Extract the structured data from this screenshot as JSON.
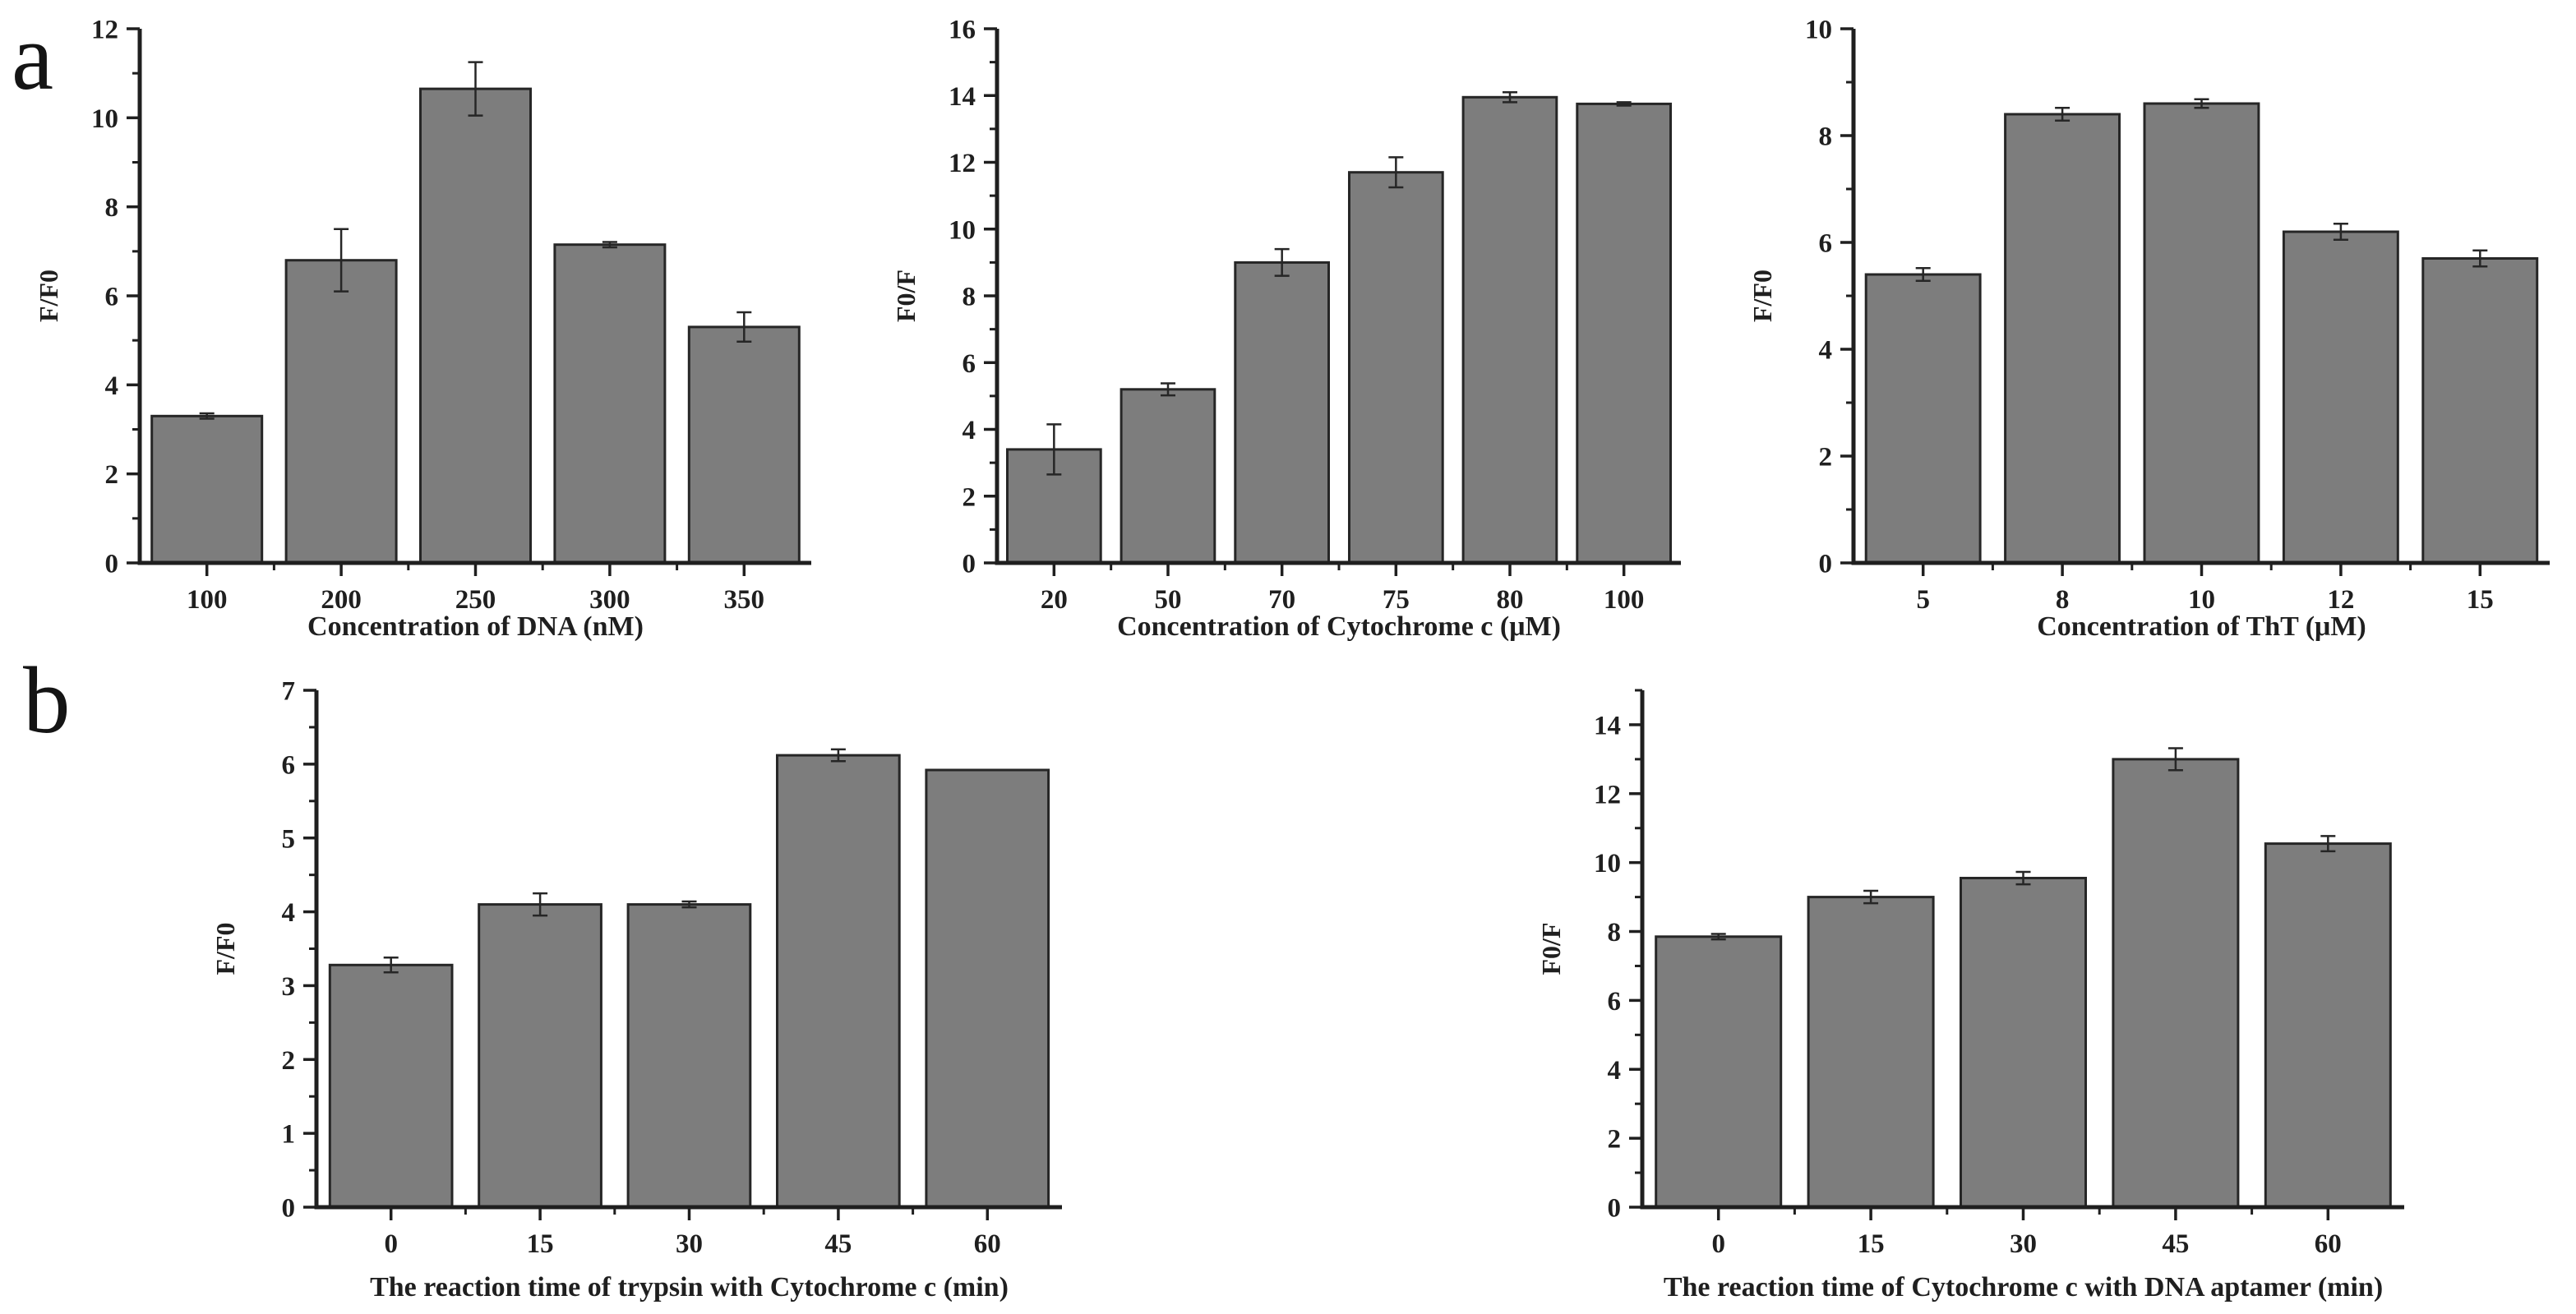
{
  "figure": {
    "description": "Five bar charts showing fluorescence ratio optimization results",
    "panels": [
      {
        "label": "a"
      },
      {
        "label": "b"
      }
    ]
  },
  "colors": {
    "background": "#ffffff",
    "bar_fill": "#7d7d7d",
    "bar_stroke": "#262626",
    "axis": "#1f1f1f",
    "text": "#1f1f1f"
  },
  "chart_data": [
    {
      "type": "bar",
      "panel": "a",
      "title": "",
      "xlabel": "Concentration of DNA (nM)",
      "ylabel": "F/F0",
      "categories": [
        "100",
        "200",
        "250",
        "300",
        "350"
      ],
      "values": [
        3.3,
        6.8,
        10.65,
        7.15,
        5.3
      ],
      "errors": [
        0.06,
        0.7,
        0.6,
        0.06,
        0.33
      ],
      "ylim": [
        0,
        12
      ],
      "ytick_step": 2,
      "yminor_step": 1,
      "grid": false,
      "legend": "none"
    },
    {
      "type": "bar",
      "panel": "a",
      "title": "",
      "xlabel": "Concentration of Cytochrome c (μM)",
      "ylabel": "F0/F",
      "categories": [
        "20",
        "50",
        "70",
        "75",
        "80",
        "100"
      ],
      "values": [
        3.4,
        5.2,
        9.0,
        11.7,
        13.95,
        13.75
      ],
      "errors": [
        0.75,
        0.18,
        0.4,
        0.45,
        0.15,
        0.05
      ],
      "ylim": [
        0,
        16
      ],
      "ytick_step": 2,
      "yminor_step": 1,
      "grid": false,
      "legend": "none"
    },
    {
      "type": "bar",
      "panel": "a",
      "title": "",
      "xlabel": "Concentration of ThT (μM)",
      "ylabel": "F/F0",
      "categories": [
        "5",
        "8",
        "10",
        "12",
        "15"
      ],
      "values": [
        5.4,
        8.4,
        8.6,
        6.2,
        5.7
      ],
      "errors": [
        0.12,
        0.12,
        0.08,
        0.15,
        0.15
      ],
      "ylim": [
        0,
        10
      ],
      "ytick_step": 2,
      "yminor_step": 1,
      "grid": false,
      "legend": "none"
    },
    {
      "type": "bar",
      "panel": "b",
      "title": "",
      "xlabel": "The reaction time of trypsin with Cytochrome c (min)",
      "ylabel": "F/F0",
      "categories": [
        "0",
        "15",
        "30",
        "45",
        "60"
      ],
      "values": [
        3.28,
        4.1,
        4.1,
        6.12,
        5.92
      ],
      "errors": [
        0.1,
        0.15,
        0.04,
        0.08,
        0
      ],
      "ylim": [
        0,
        7
      ],
      "ytick_step": 1,
      "yminor_step": 0.5,
      "grid": false,
      "legend": "none"
    },
    {
      "type": "bar",
      "panel": "b",
      "title": "",
      "xlabel": "The reaction time of Cytochrome c with DNA aptamer (min)",
      "ylabel": "F0/F",
      "categories": [
        "0",
        "15",
        "30",
        "45",
        "60"
      ],
      "values": [
        7.85,
        9.0,
        9.55,
        13.0,
        10.55
      ],
      "errors": [
        0.08,
        0.18,
        0.18,
        0.32,
        0.22
      ],
      "ylim": [
        0,
        15
      ],
      "ytick_step": 2,
      "yminor_step": 1,
      "grid": false,
      "legend": "none"
    }
  ]
}
